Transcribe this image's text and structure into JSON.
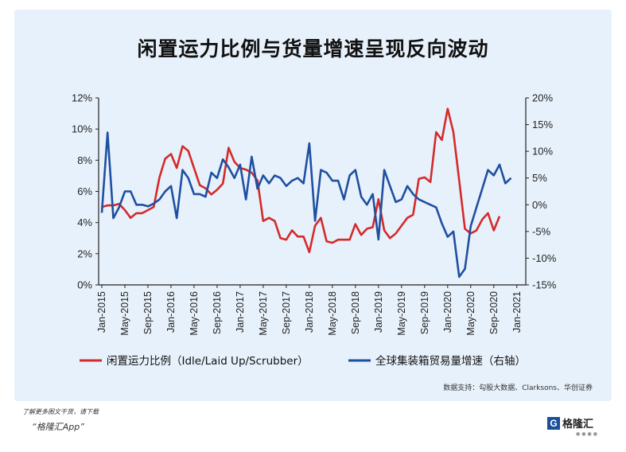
{
  "title": "闲置运力比例与货量增速呈现反向波动",
  "source": "数据支持：勾股大数据、Clarksons、华创证券",
  "footer": {
    "line1": "了解更多图文干货，请下载",
    "line2": "“格隆汇App”"
  },
  "logo": {
    "mark": "G",
    "text": "格隆汇",
    "icon": "gelonghui-logo-icon"
  },
  "watermark": "格隆汇 勾股大数据",
  "chart_data": {
    "type": "line",
    "title": "闲置运力比例与货量增速呈现反向波动",
    "x_axis": {
      "start": "2015-01",
      "end": "2021-02",
      "tick_labels": [
        "Jan-2015",
        "May-2015",
        "Sep-2015",
        "Jan-2016",
        "May-2016",
        "Sep-2016",
        "Jan-2017",
        "May-2017",
        "Sep-2017",
        "Jan-2018",
        "May-2018",
        "Sep-2018",
        "Jan-2019",
        "May-2019",
        "Sep-2019",
        "Jan-2020",
        "May-2020",
        "Sep-2020",
        "Jan-2021"
      ]
    },
    "left_axis": {
      "range": [
        0,
        12
      ],
      "ticks": [
        "0%",
        "2%",
        "4%",
        "6%",
        "8%",
        "10%",
        "12%"
      ]
    },
    "right_axis": {
      "range": [
        -15,
        20
      ],
      "ticks": [
        "-15%",
        "-10%",
        "-5%",
        "0%",
        "5%",
        "10%",
        "15%",
        "20%"
      ]
    },
    "grid": false,
    "legend_position": "bottom",
    "series": [
      {
        "name": "闲置运力比例（Idle/Laid Up/Scrubber）",
        "axis": "left",
        "color": "#d42a2a",
        "values": [
          5.0,
          5.1,
          5.1,
          5.2,
          4.8,
          4.3,
          4.6,
          4.6,
          4.8,
          5.0,
          6.9,
          8.1,
          8.4,
          7.5,
          8.9,
          8.6,
          7.5,
          6.4,
          6.2,
          5.8,
          6.1,
          6.5,
          8.8,
          7.9,
          7.5,
          7.4,
          7.2,
          6.7,
          4.1,
          4.3,
          4.1,
          3.0,
          2.9,
          3.5,
          3.1,
          3.1,
          2.1,
          3.8,
          4.3,
          2.8,
          2.7,
          2.9,
          2.9,
          2.9,
          3.9,
          3.2,
          3.6,
          3.7,
          5.5,
          3.5,
          3.0,
          3.3,
          3.8,
          4.3,
          4.5,
          6.8,
          6.9,
          6.6,
          9.8,
          9.3,
          11.3,
          9.8,
          6.7,
          3.6,
          3.3,
          3.5,
          4.2,
          4.6,
          3.5,
          4.4
        ]
      },
      {
        "name": "全球集装箱贸易量增速（右轴）",
        "axis": "right",
        "color": "#1f4fa0",
        "values": [
          -1.5,
          13.5,
          -2.5,
          -0.5,
          2.5,
          2.5,
          0.0,
          0.0,
          -0.3,
          0.2,
          1.0,
          2.5,
          3.5,
          -2.5,
          6.5,
          5.0,
          2.0,
          2.0,
          1.5,
          6.0,
          5.0,
          8.5,
          7.0,
          5.0,
          7.5,
          1.0,
          9.0,
          3.0,
          5.5,
          4.0,
          5.5,
          5.0,
          3.5,
          4.5,
          5.0,
          4.0,
          11.5,
          -3.0,
          6.5,
          6.0,
          4.5,
          4.5,
          1.0,
          5.5,
          6.5,
          1.5,
          0.0,
          2.0,
          -6.5,
          6.5,
          3.5,
          0.5,
          1.0,
          3.5,
          2.0,
          1.0,
          0.5,
          0.0,
          -0.5,
          -3.5,
          -6.0,
          -5.0,
          -13.5,
          -12.0,
          -4.0,
          -0.5,
          3.0,
          6.5,
          5.5,
          7.5,
          4.0,
          5.0
        ]
      }
    ]
  }
}
